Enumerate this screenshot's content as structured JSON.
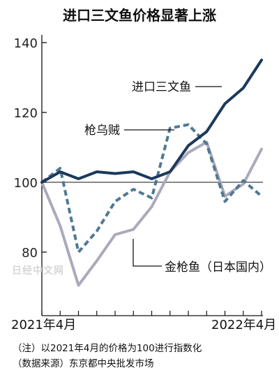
{
  "chart_data": {
    "type": "line",
    "title": "进口三文鱼价格显著上涨",
    "x_start_label": "2021年4月",
    "x_end_label": "2022年4月",
    "x": [
      "2021-04",
      "2021-05",
      "2021-06",
      "2021-07",
      "2021-08",
      "2021-09",
      "2021-10",
      "2021-11",
      "2021-12",
      "2022-01",
      "2022-02",
      "2022-03",
      "2022-04"
    ],
    "yticks": [
      80,
      100,
      120,
      140
    ],
    "ylim": [
      66,
      143
    ],
    "baseline": 100,
    "series": [
      {
        "name": "进口三文鱼",
        "color": "#1b3a5c",
        "style": "solid",
        "values": [
          100,
          103,
          101,
          103,
          102.5,
          103,
          101,
          103,
          110.5,
          114.5,
          122.5,
          127,
          135
        ]
      },
      {
        "name": "枪乌贼",
        "color": "#4f7993",
        "style": "dashed",
        "values": [
          100,
          104,
          80,
          86,
          94.5,
          98,
          95.5,
          115.5,
          116.5,
          111,
          94.5,
          100.5,
          96
        ]
      },
      {
        "name": "金枪鱼（日本国内）",
        "color": "#aaaabb",
        "style": "solid",
        "values": [
          100,
          87.5,
          70.5,
          77.5,
          85,
          86.5,
          93,
          103,
          108.5,
          111.5,
          96,
          99.5,
          109.5
        ]
      }
    ]
  },
  "watermark": "日经中文网",
  "notes": [
    "（注）以2021年4月的价格为100进行指数化",
    "（数据来源）东京都中央批发市场"
  ]
}
